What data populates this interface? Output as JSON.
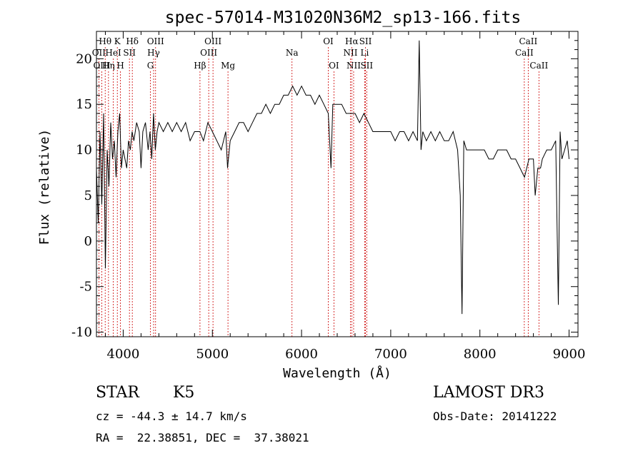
{
  "chart_data": {
    "type": "line",
    "title": "spec-57014-M31020N36M2_sp13-166.fits",
    "xlabel": "Wavelength (Å)",
    "ylabel": "Flux (relative)",
    "xlim": [
      3700,
      9100
    ],
    "ylim": [
      -10.5,
      23
    ],
    "xticks": [
      4000,
      5000,
      6000,
      7000,
      8000,
      9000
    ],
    "yticks": [
      -10,
      -5,
      0,
      5,
      10,
      15,
      20
    ],
    "grid": false,
    "line_color": "#000000",
    "marker_color": "#cc0000",
    "series": [
      {
        "x": [
          3700,
          3720,
          3740,
          3760,
          3780,
          3800,
          3820,
          3840,
          3860,
          3880,
          3900,
          3920,
          3940,
          3960,
          3980,
          4000,
          4020,
          4040,
          4060,
          4080,
          4100,
          4120,
          4150,
          4180,
          4200,
          4220,
          4250,
          4280,
          4300,
          4320,
          4340,
          4360,
          4380,
          4400,
          4450,
          4500,
          4550,
          4600,
          4650,
          4700,
          4750,
          4800,
          4860,
          4900,
          4950,
          5000,
          5050,
          5100,
          5150,
          5170,
          5180,
          5200,
          5250,
          5300,
          5350,
          5400,
          5450,
          5500,
          5550,
          5600,
          5650,
          5700,
          5750,
          5800,
          5850,
          5900,
          5950,
          6000,
          6050,
          6100,
          6150,
          6200,
          6250,
          6300,
          6330,
          6350,
          6400,
          6450,
          6500,
          6550,
          6560,
          6600,
          6650,
          6700,
          6750,
          6800,
          6850,
          6900,
          6950,
          7000,
          7050,
          7100,
          7150,
          7200,
          7250,
          7300,
          7320,
          7340,
          7360,
          7400,
          7450,
          7500,
          7550,
          7600,
          7650,
          7700,
          7750,
          7780,
          7800,
          7820,
          7850,
          7900,
          7950,
          8000,
          8050,
          8100,
          8150,
          8200,
          8250,
          8300,
          8350,
          8400,
          8450,
          8500,
          8550,
          8600,
          8620,
          8650,
          8680,
          8700,
          8750,
          8800,
          8850,
          8880,
          8900,
          8920,
          8950,
          8980,
          9000
        ],
        "y": [
          8,
          2,
          12,
          4,
          14,
          -3,
          10,
          6,
          13,
          9,
          11,
          7,
          12,
          14,
          8,
          10,
          9,
          8,
          11,
          10,
          12,
          11,
          13,
          12,
          8,
          12,
          13,
          10,
          12,
          9,
          14,
          10,
          12,
          13,
          12,
          13,
          12,
          13,
          12,
          13,
          11,
          12,
          12,
          11,
          13,
          12,
          11,
          10,
          12,
          8,
          9,
          11,
          12,
          13,
          13,
          12,
          13,
          14,
          14,
          15,
          14,
          15,
          15,
          16,
          16,
          17,
          16,
          17,
          16,
          16,
          15,
          16,
          15,
          14,
          8,
          15,
          15,
          15,
          14,
          14,
          14,
          14,
          13,
          14,
          13,
          12,
          12,
          12,
          12,
          12,
          11,
          12,
          12,
          11,
          12,
          11,
          22,
          10,
          12,
          11,
          12,
          11,
          12,
          11,
          11,
          12,
          10,
          5,
          -8,
          11,
          10,
          10,
          10,
          10,
          10,
          9,
          9,
          10,
          10,
          10,
          9,
          9,
          8,
          7,
          9,
          9,
          5,
          8,
          8,
          9,
          10,
          10,
          11,
          -7,
          12,
          9,
          10,
          11,
          9
        ]
      }
    ],
    "line_markers": [
      {
        "label": "Hθ",
        "x": 3798,
        "row": 1
      },
      {
        "label": "OII",
        "x": 3727,
        "row": 2
      },
      {
        "label": "OIII",
        "x": 3760,
        "row": 3
      },
      {
        "label": "K",
        "x": 3934,
        "row": 1
      },
      {
        "label": "HeI",
        "x": 3889,
        "row": 2
      },
      {
        "label": "Hη",
        "x": 3835,
        "row": 3
      },
      {
        "label": "Hδ",
        "x": 4102,
        "row": 1
      },
      {
        "label": "SII",
        "x": 4070,
        "row": 2
      },
      {
        "label": "H",
        "x": 3969,
        "row": 3
      },
      {
        "label": "OIII",
        "x": 4363,
        "row": 1
      },
      {
        "label": "Hγ",
        "x": 4341,
        "row": 2
      },
      {
        "label": "G",
        "x": 4305,
        "row": 3
      },
      {
        "label": "OIII",
        "x": 5007,
        "row": 1
      },
      {
        "label": "OIII",
        "x": 4959,
        "row": 2
      },
      {
        "label": "Hβ",
        "x": 4861,
        "row": 3
      },
      {
        "label": "Mg",
        "x": 5175,
        "row": 3
      },
      {
        "label": "Na",
        "x": 5893,
        "row": 2
      },
      {
        "label": "OI",
        "x": 6300,
        "row": 1
      },
      {
        "label": "OI",
        "x": 6363,
        "row": 3
      },
      {
        "label": "Hα",
        "x": 6563,
        "row": 1
      },
      {
        "label": "NII",
        "x": 6548,
        "row": 2
      },
      {
        "label": "NII",
        "x": 6584,
        "row": 3
      },
      {
        "label": "SII",
        "x": 6717,
        "row": 1
      },
      {
        "label": "Li",
        "x": 6708,
        "row": 2
      },
      {
        "label": "SII",
        "x": 6731,
        "row": 3
      },
      {
        "label": "CaII",
        "x": 8542,
        "row": 1
      },
      {
        "label": "CaII",
        "x": 8498,
        "row": 2
      },
      {
        "label": "CaII",
        "x": 8662,
        "row": 3
      }
    ]
  },
  "info": {
    "class_label": "STAR",
    "subclass_label": "K5",
    "survey_label": "LAMOST DR3",
    "cz_text": "cz = -44.3 ± 14.7 km/s",
    "obs_date_text": "Obs-Date: 20141222",
    "radec_text": "RA =  22.38851, DEC =  37.38021"
  }
}
